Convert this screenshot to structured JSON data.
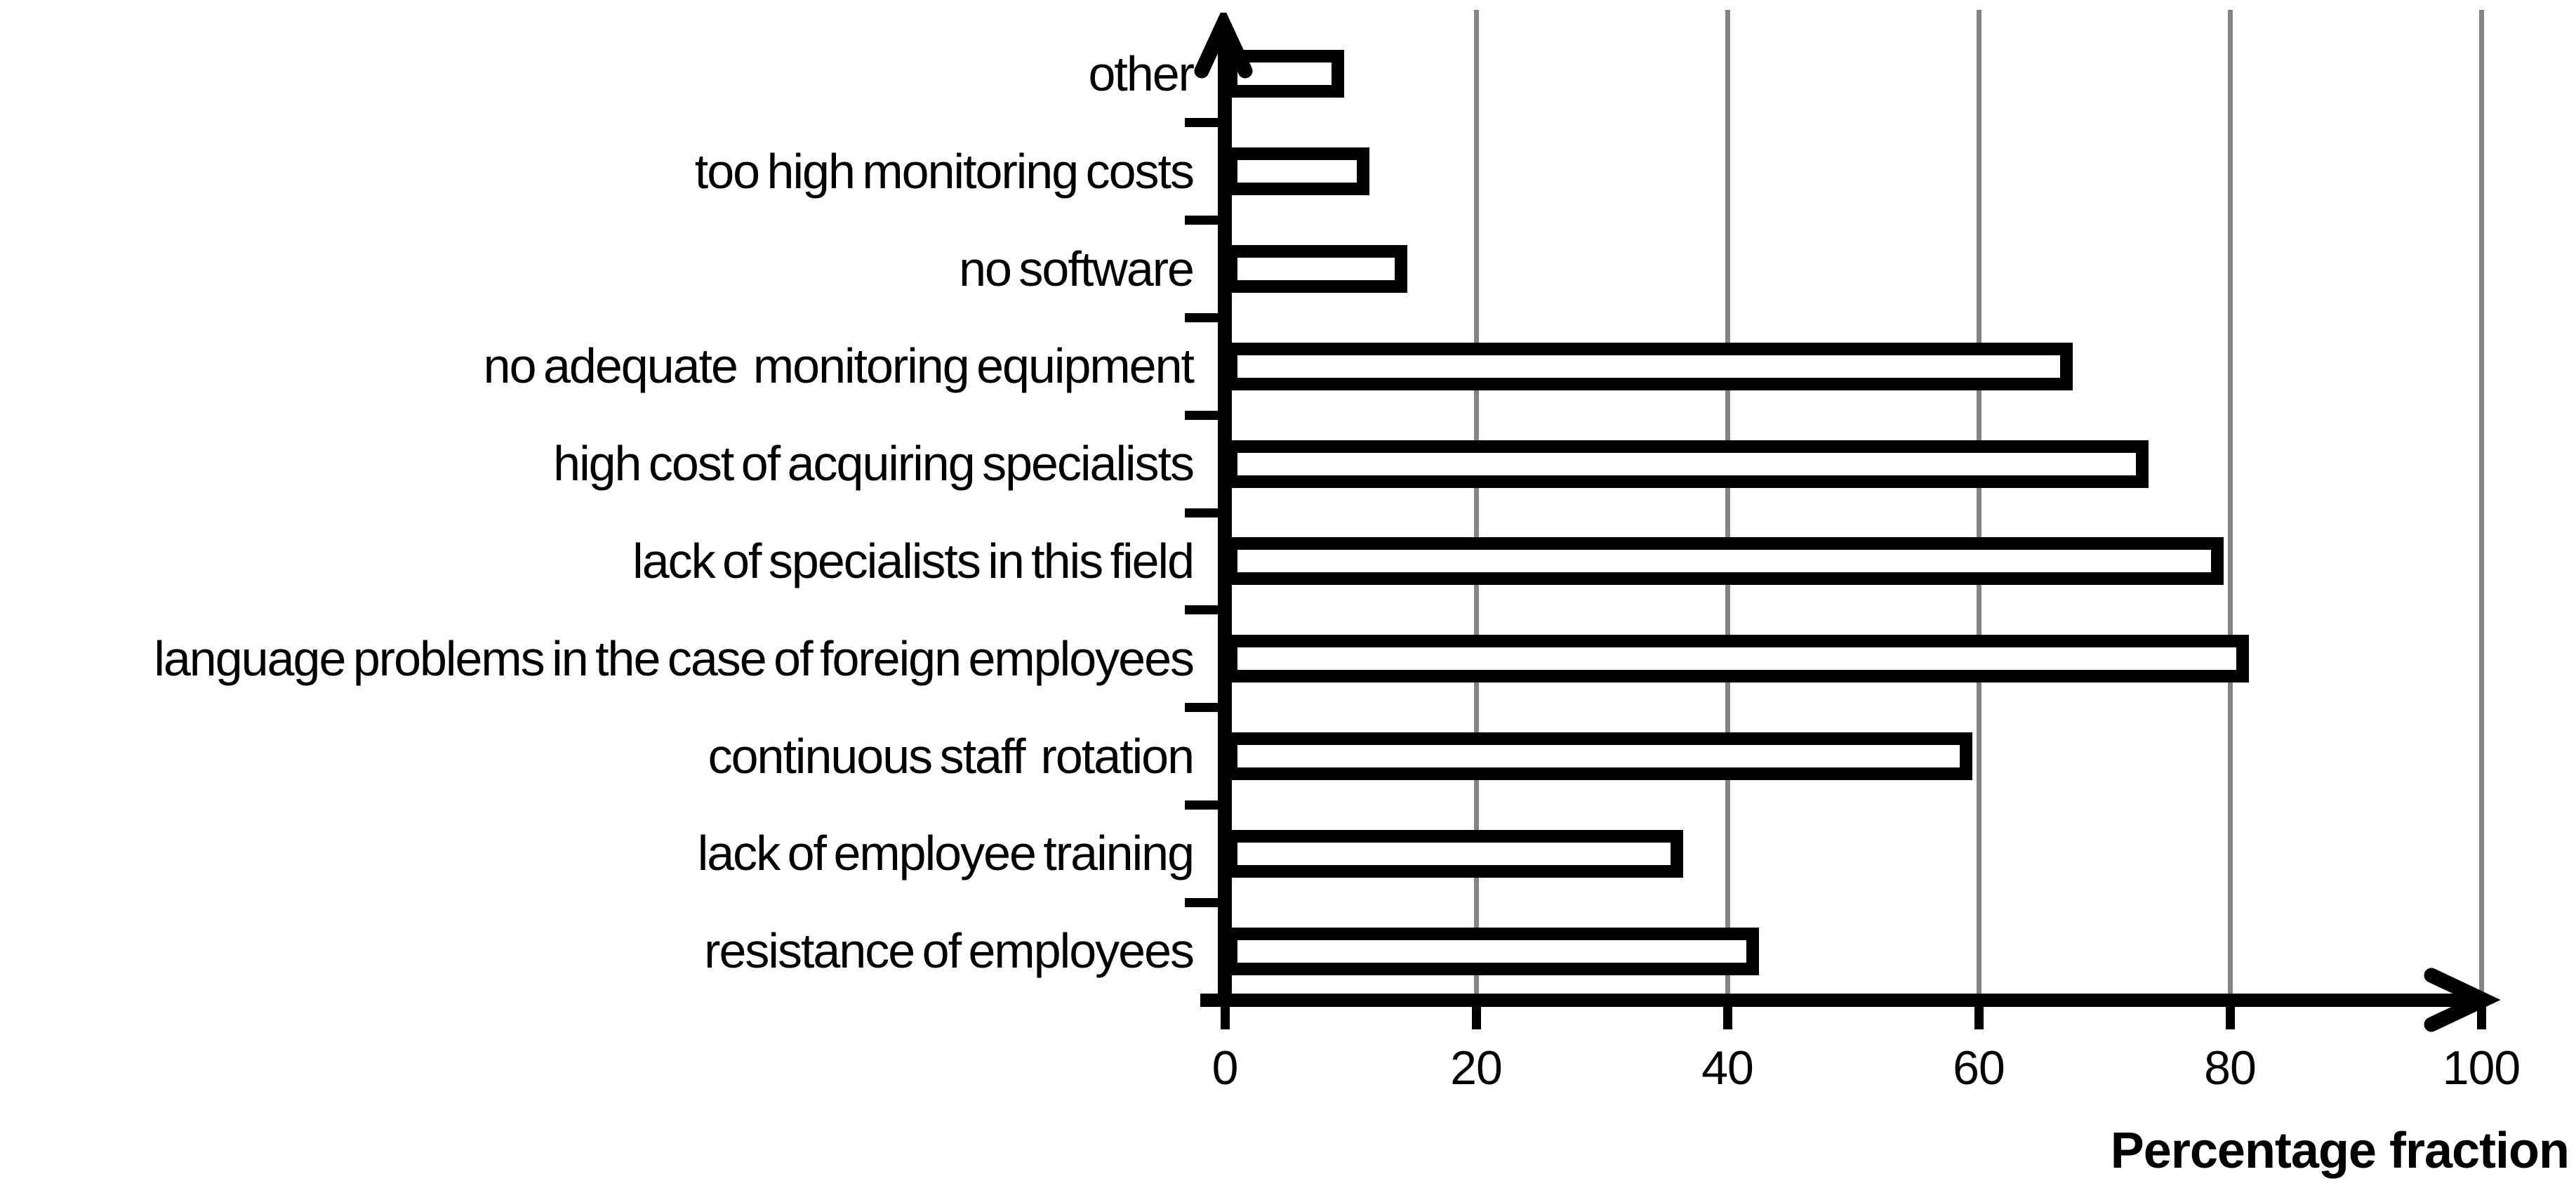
{
  "chart_data": {
    "type": "bar",
    "orientation": "horizontal",
    "title": "",
    "xlabel": "Percentage fraction",
    "ylabel": "",
    "categories": [
      "other",
      "too high monitoring costs",
      "no software",
      "no adequate  monitoring equipment",
      "high cost of acquiring specialists",
      "lack of specialists in this field",
      "language problems in the case of foreign employees",
      "continuous staff  rotation",
      "lack of employee training",
      "resistance of employees"
    ],
    "values": [
      9,
      11,
      14,
      67,
      73,
      79,
      81,
      59,
      36,
      42
    ],
    "x_ticks": [
      0,
      20,
      40,
      60,
      80,
      100
    ],
    "xlim": [
      0,
      100
    ],
    "grid": "vertical-gridlines-at-x-ticks",
    "legend": "none",
    "bar_fill_color": "#ffffff",
    "bar_border_color": "#000000",
    "gridline_color": "#848484",
    "axis_color": "#000000",
    "background_color": "#ffffff"
  }
}
